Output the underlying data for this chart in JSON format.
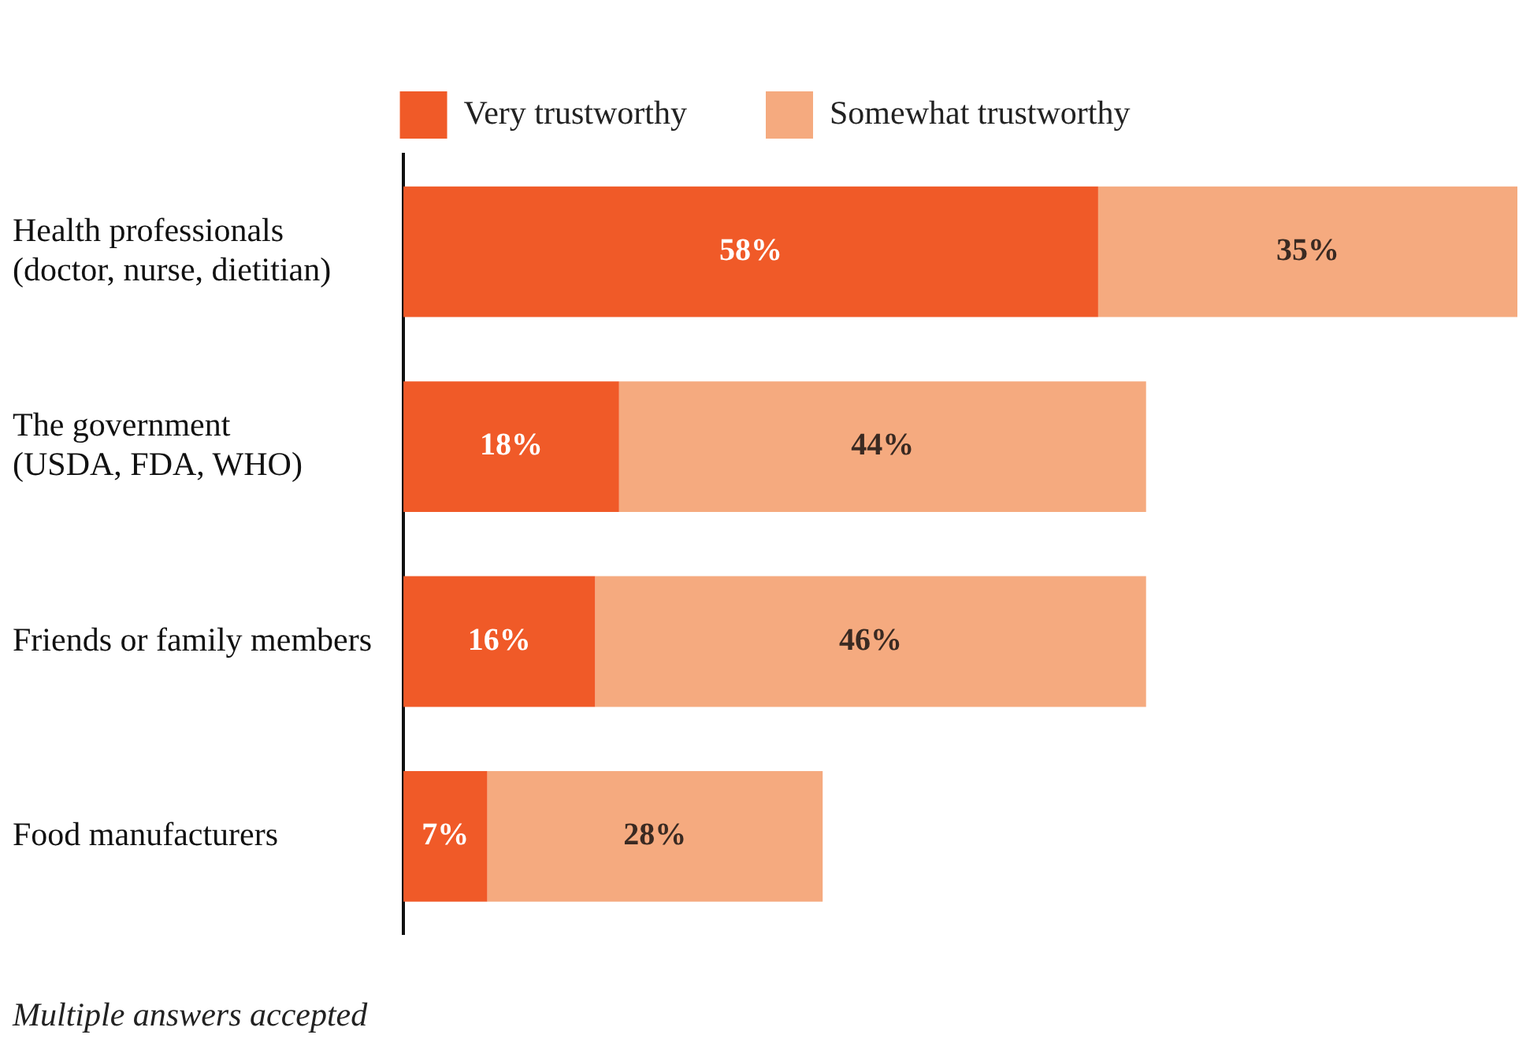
{
  "chart_data": {
    "type": "bar",
    "orientation": "horizontal",
    "stacked": true,
    "legend": "top",
    "categories": [
      "Health professionals\n(doctor, nurse, dietitian)",
      "The government\n(USDA, FDA, WHO)",
      "Friends or family members",
      "Food manufacturers"
    ],
    "series": [
      {
        "name": "Very trustworthy",
        "color": "#f05a28",
        "values": [
          58,
          18,
          16,
          7
        ],
        "value_labels": [
          "58%",
          "18%",
          "16%",
          "7%"
        ]
      },
      {
        "name": "Somewhat trustworthy",
        "color": "#f5aa7f",
        "values": [
          35,
          44,
          46,
          28
        ],
        "value_labels": [
          "35%",
          "44%",
          "46%",
          "28%"
        ]
      }
    ],
    "annotations": [
      "Multiple answers accepted"
    ]
  }
}
